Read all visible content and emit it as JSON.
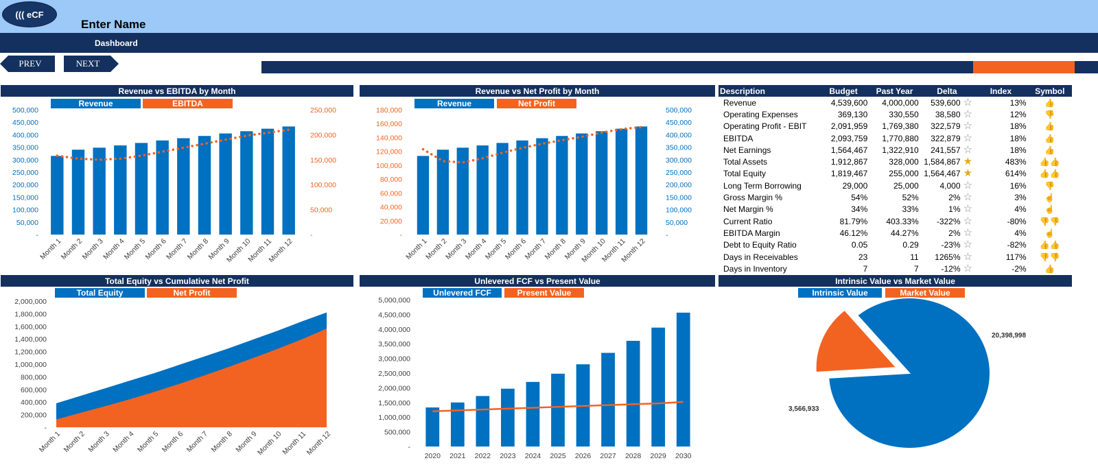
{
  "app": {
    "logo_text": "((( eCF",
    "title": "Enter Name",
    "nav_label": "Dashboard",
    "prev_label": "PREV",
    "next_label": "NEXT"
  },
  "colors": {
    "blue": "#0070c0",
    "orange": "#f26322",
    "navy": "#14305e",
    "light_blue": "#9cc9f7"
  },
  "icons": {
    "star": "star-icon",
    "thumb_up": "thumbs-up-icon",
    "thumb_down": "thumbs-down-icon",
    "hand": "hand-icon"
  },
  "charts": {
    "rev_ebitda": {
      "title": "Revenue vs EBITDA by Month",
      "legend": [
        "Revenue",
        "EBITDA"
      ]
    },
    "rev_np": {
      "title": "Revenue vs Net Profit by Month",
      "legend": [
        "Revenue",
        "Net Profit"
      ]
    },
    "equity": {
      "title": "Total Equity vs Cumulative Net Profit",
      "legend": [
        "Total Equity",
        "Net Profit"
      ]
    },
    "fcf": {
      "title": "Unlevered FCF vs Present Value",
      "legend": [
        "Unlevered FCF",
        "Present Value"
      ]
    },
    "intrinsic": {
      "title": "Intrinsic Value vs Market Value",
      "legend": [
        "Intrinsic Value",
        "Market Value"
      ]
    }
  },
  "table": {
    "headers": [
      "Description",
      "Budget",
      "Past Year",
      "Delta",
      "Index",
      "Symbol"
    ],
    "rows": [
      {
        "desc": "Revenue",
        "budget": "4,539,600",
        "past": "4,000,000",
        "delta": "539,600",
        "star": "outline",
        "index": "13%",
        "symbol": "👍"
      },
      {
        "desc": "Operating Expenses",
        "budget": "369,130",
        "past": "330,550",
        "delta": "38,580",
        "star": "outline",
        "index": "12%",
        "symbol": "👎"
      },
      {
        "desc": "Operating Profit - EBIT",
        "budget": "2,091,959",
        "past": "1,769,380",
        "delta": "322,579",
        "star": "outline",
        "index": "18%",
        "symbol": "👍"
      },
      {
        "desc": "EBITDA",
        "budget": "2,093,759",
        "past": "1,770,880",
        "delta": "322,879",
        "star": "outline",
        "index": "18%",
        "symbol": "👍"
      },
      {
        "desc": "Net Earnings",
        "budget": "1,564,467",
        "past": "1,322,910",
        "delta": "241,557",
        "star": "outline",
        "index": "18%",
        "symbol": "👍"
      },
      {
        "desc": "Total Assets",
        "budget": "1,912,867",
        "past": "328,000",
        "delta": "1,584,867",
        "star": "gold",
        "index": "483%",
        "symbol": "👍👍"
      },
      {
        "desc": "Total Equity",
        "budget": "1,819,467",
        "past": "255,000",
        "delta": "1,564,467",
        "star": "gold",
        "index": "614%",
        "symbol": "👍👍"
      },
      {
        "desc": "Long Term Borrowing",
        "budget": "29,000",
        "past": "25,000",
        "delta": "4,000",
        "star": "outline",
        "index": "16%",
        "symbol": "👎"
      },
      {
        "desc": "Gross Margin %",
        "budget": "54%",
        "past": "52%",
        "delta": "2%",
        "star": "outline",
        "index": "3%",
        "symbol": "☝"
      },
      {
        "desc": "Net Margin %",
        "budget": "34%",
        "past": "33%",
        "delta": "1%",
        "star": "outline",
        "index": "4%",
        "symbol": "☝"
      },
      {
        "desc": "Current Ratio",
        "budget": "81.79%",
        "past": "403.33%",
        "delta": "-322%",
        "star": "outline",
        "index": "-80%",
        "symbol": "👎👎"
      },
      {
        "desc": "EBITDA Margin",
        "budget": "46.12%",
        "past": "44.27%",
        "delta": "2%",
        "star": "outline",
        "index": "4%",
        "symbol": "☝"
      },
      {
        "desc": "Debt to Equity Ratio",
        "budget": "0.05",
        "past": "0.29",
        "delta": "-23%",
        "star": "outline",
        "index": "-82%",
        "symbol": "👍👍"
      },
      {
        "desc": "Days in Receivables",
        "budget": "23",
        "past": "11",
        "delta": "1265%",
        "star": "outline",
        "index": "117%",
        "symbol": "👎👎"
      },
      {
        "desc": "Days in Inventory",
        "budget": "7",
        "past": "7",
        "delta": "-12%",
        "star": "outline",
        "index": "-2%",
        "symbol": "👍"
      }
    ]
  },
  "chart_data": [
    {
      "type": "bar",
      "title": "Revenue vs EBITDA by Month",
      "categories": [
        "Month 1",
        "Month 2",
        "Month 3",
        "Month 4",
        "Month 5",
        "Month 6",
        "Month 7",
        "Month 8",
        "Month 9",
        "Month 10",
        "Month 11",
        "Month 12"
      ],
      "series": [
        {
          "name": "Revenue",
          "type": "bar",
          "axis": "left",
          "values": [
            315000,
            340000,
            348000,
            357000,
            367000,
            377000,
            386000,
            395000,
            405000,
            414000,
            424000,
            433000
          ]
        },
        {
          "name": "EBITDA",
          "type": "line",
          "axis": "right",
          "values": [
            158000,
            152000,
            150000,
            152000,
            158000,
            166000,
            174000,
            182000,
            190000,
            198000,
            204000,
            210000
          ]
        }
      ],
      "ylim": [
        0,
        500000
      ],
      "y2lim": [
        0,
        250000
      ],
      "yticks": [
        "-",
        "50,000",
        "100,000",
        "150,000",
        "200,000",
        "250,000",
        "300,000",
        "350,000",
        "400,000",
        "450,000",
        "500,000"
      ],
      "y2ticks": [
        "-",
        "50,000",
        "100,000",
        "150,000",
        "200,000",
        "250,000"
      ]
    },
    {
      "type": "bar",
      "title": "Revenue vs Net Profit by Month",
      "categories": [
        "Month 1",
        "Month 2",
        "Month 3",
        "Month 4",
        "Month 5",
        "Month 6",
        "Month 7",
        "Month 8",
        "Month 9",
        "Month 10",
        "Month 11",
        "Month 12"
      ],
      "series": [
        {
          "name": "Revenue",
          "type": "bar",
          "axis": "right",
          "values": [
            315000,
            340000,
            348000,
            357000,
            367000,
            377000,
            386000,
            395000,
            405000,
            414000,
            424000,
            433000
          ]
        },
        {
          "name": "Net Profit",
          "type": "line",
          "axis": "left",
          "values": [
            123000,
            106000,
            104000,
            110000,
            118000,
            125000,
            131000,
            136000,
            141000,
            147000,
            152000,
            155000
          ]
        }
      ],
      "ylim": [
        0,
        180000
      ],
      "y2lim": [
        0,
        500000
      ],
      "yticks": [
        "-",
        "20,000",
        "40,000",
        "60,000",
        "80,000",
        "100,000",
        "120,000",
        "140,000",
        "160,000",
        "180,000"
      ],
      "y2ticks": [
        "-",
        "50,000",
        "100,000",
        "150,000",
        "200,000",
        "250,000",
        "300,000",
        "350,000",
        "400,000",
        "450,000",
        "500,000"
      ]
    },
    {
      "type": "area",
      "title": "Total Equity vs Cumulative Net Profit",
      "categories": [
        "Month 1",
        "Month 2",
        "Month 3",
        "Month 4",
        "Month 5",
        "Month 6",
        "Month 7",
        "Month 8",
        "Month 9",
        "Month 10",
        "Month 11",
        "Month 12"
      ],
      "series": [
        {
          "name": "Total Equity",
          "values": [
            380000,
            500000,
            620000,
            740000,
            860000,
            990000,
            1120000,
            1250000,
            1390000,
            1530000,
            1680000,
            1820000
          ]
        },
        {
          "name": "Net Profit",
          "values": [
            125000,
            231000,
            335000,
            445000,
            563000,
            688000,
            819000,
            955000,
            1096000,
            1243000,
            1395000,
            1564000
          ]
        }
      ],
      "ylim": [
        0,
        2000000
      ],
      "yticks": [
        "-",
        "200,000",
        "400,000",
        "600,000",
        "800,000",
        "1,000,000",
        "1,200,000",
        "1,400,000",
        "1,600,000",
        "1,800,000",
        "2,000,000"
      ]
    },
    {
      "type": "bar",
      "title": "Unlevered FCF vs Present Value",
      "categories": [
        "2020",
        "2021",
        "2022",
        "2023",
        "2024",
        "2025",
        "2026",
        "2027",
        "2028",
        "2029",
        "2030"
      ],
      "series": [
        {
          "name": "Unlevered FCF",
          "type": "bar",
          "values": [
            1330000,
            1500000,
            1720000,
            1970000,
            2200000,
            2480000,
            2800000,
            3190000,
            3600000,
            4050000,
            4560000
          ]
        },
        {
          "name": "Present Value",
          "type": "line",
          "values": [
            1200000,
            1230000,
            1260000,
            1290000,
            1320000,
            1350000,
            1380000,
            1410000,
            1440000,
            1470000,
            1520000
          ]
        }
      ],
      "ylim": [
        0,
        5000000
      ],
      "yticks": [
        "-",
        "500,000",
        "1,000,000",
        "1,500,000",
        "2,000,000",
        "2,500,000",
        "3,000,000",
        "3,500,000",
        "4,000,000",
        "4,500,000",
        "5,000,000"
      ]
    },
    {
      "type": "pie",
      "title": "Intrinsic Value vs Market Value",
      "labels": [
        "Intrinsic Value",
        "Market Value"
      ],
      "values": [
        20398998,
        3566933
      ],
      "value_labels": [
        "20,398,998",
        "3,566,933"
      ]
    }
  ]
}
